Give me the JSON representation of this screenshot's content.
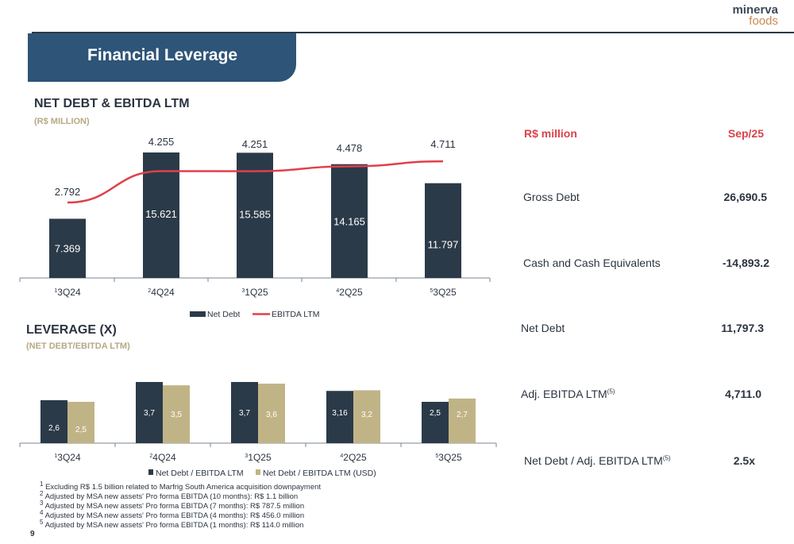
{
  "brand": {
    "line1": "minerva",
    "line2": "foods"
  },
  "slide_title": "Financial Leverage",
  "page_number": "9",
  "colors": {
    "navy": "#2b3a48",
    "gold": "#c0b487",
    "red": "#e0404a",
    "band": "#2e5477"
  },
  "chart_data": [
    {
      "type": "bar",
      "title": "NET DEBT & EBITDA LTM",
      "subtitle": "(R$ MILLION)",
      "categories": [
        "3Q24",
        "4Q24",
        "1Q25",
        "2Q25",
        "3Q25"
      ],
      "category_notes": [
        "1",
        "2",
        "3",
        "4",
        "5"
      ],
      "series": [
        {
          "name": "Net Debt",
          "kind": "bar",
          "values": [
            7369,
            15621,
            15585,
            14165,
            11797
          ],
          "labels": [
            "7.369",
            "15.621",
            "15.585",
            "14.165",
            "11.797"
          ]
        },
        {
          "name": "EBITDA LTM",
          "kind": "line",
          "values": [
            2792,
            4255,
            4251,
            4478,
            4711
          ],
          "labels": [
            "2.792",
            "4.255",
            "4.251",
            "4.478",
            "4.711"
          ]
        }
      ],
      "legend": [
        "Net Debt",
        "EBITDA LTM"
      ],
      "ylim": [
        0,
        18000
      ]
    },
    {
      "type": "bar",
      "title": "LEVERAGE (X)",
      "subtitle": "(NET DEBT/EBITDA LTM)",
      "categories": [
        "3Q24",
        "4Q24",
        "1Q25",
        "2Q25",
        "3Q25"
      ],
      "category_notes": [
        "1",
        "2",
        "3",
        "4",
        "5"
      ],
      "series": [
        {
          "name": "Net Debt / EBITDA LTM",
          "values": [
            2.6,
            3.7,
            3.7,
            3.16,
            2.5
          ],
          "labels": [
            "2,6",
            "3,7",
            "3,7",
            "3,16",
            "2,5"
          ]
        },
        {
          "name": "Net Debt / EBITDA LTM (USD)",
          "values": [
            2.5,
            3.5,
            3.6,
            3.2,
            2.7
          ],
          "labels": [
            "2,5",
            "3,5",
            "3,6",
            "3,2",
            "2,7"
          ]
        }
      ],
      "legend": [
        "Net Debt / EBITDA LTM",
        "Net Debt / EBITDA LTM (USD)"
      ],
      "ylim": [
        0,
        4.2
      ]
    }
  ],
  "table": {
    "header_label": "R$ million",
    "header_value": "Sep/25",
    "rows": [
      {
        "label": "Gross Debt",
        "sup": "",
        "value": "26,690.5"
      },
      {
        "label": "Cash and Cash Equivalents",
        "sup": "",
        "value": "-14,893.2"
      },
      {
        "label": "Net Debt",
        "sup": "",
        "value": "11,797.3"
      },
      {
        "label": "Adj. EBITDA LTM",
        "sup": "(5)",
        "value": "4,711.0"
      },
      {
        "label": "Net Debt / Adj. EBITDA LTM",
        "sup": "(5)",
        "value": "2.5x"
      }
    ]
  },
  "footnotes": [
    {
      "num": "1",
      "text": "Excluding R$ 1.5 billion related to Marfrig South America acquisition downpayment"
    },
    {
      "num": "2",
      "text": "Adjusted by MSA new assets' Pro forma EBITDA (10 months): R$ 1.1 billion"
    },
    {
      "num": "3",
      "text": "Adjusted by MSA new assets' Pro forma EBITDA (7 months): R$ 787.5 million"
    },
    {
      "num": "4",
      "text": "Adjusted by MSA new assets' Pro forma EBITDA (4 months): R$ 456.0 million"
    },
    {
      "num": "5",
      "text": "Adjusted by MSA new assets' Pro forma EBITDA (1 months): R$ 114.0 million"
    }
  ]
}
